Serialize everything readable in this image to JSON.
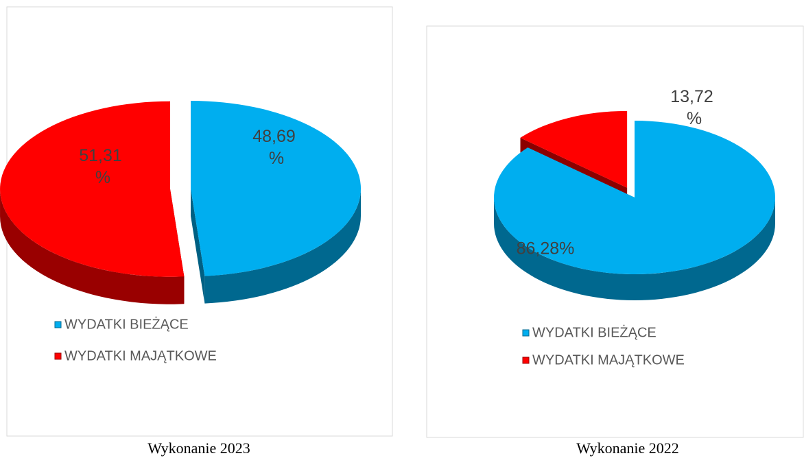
{
  "chart_data": [
    {
      "type": "pie",
      "title": "Wykonanie 2023",
      "categories": [
        "WYDATKI BIEŻĄCE",
        "WYDATKI MAJĄTKOWE"
      ],
      "values": [
        48.69,
        51.31
      ],
      "value_labels": [
        "48,69 %",
        "51,31 %"
      ],
      "colors": [
        "#00aeef",
        "#ff0000"
      ]
    },
    {
      "type": "pie",
      "title": "Wykonanie 2022",
      "categories": [
        "WYDATKI BIEŻĄCE",
        "WYDATKI MAJĄTKOWE"
      ],
      "values": [
        86.28,
        13.72
      ],
      "value_labels": [
        "86,28%",
        "13,72 %"
      ],
      "colors": [
        "#00aeef",
        "#ff0000"
      ]
    }
  ]
}
